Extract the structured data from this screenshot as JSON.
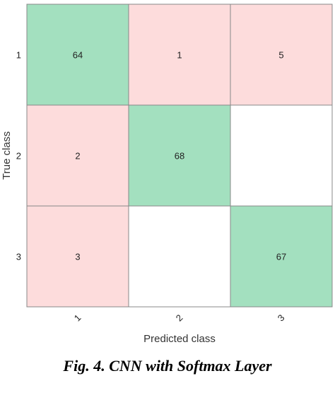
{
  "chart_data": {
    "type": "heatmap",
    "xlabel": "Predicted class",
    "ylabel": "True class",
    "x_tick_labels": [
      "1",
      "2",
      "3"
    ],
    "y_tick_labels": [
      "1",
      "2",
      "3"
    ],
    "matrix": [
      [
        64,
        1,
        5
      ],
      [
        2,
        68,
        null
      ],
      [
        3,
        null,
        67
      ]
    ],
    "colors": {
      "correct": "#a3e0bf",
      "incorrect": "#fddcdc",
      "empty": "#ffffff",
      "border": "#888888"
    }
  },
  "caption": "Fig. 4. CNN with Softmax Layer"
}
